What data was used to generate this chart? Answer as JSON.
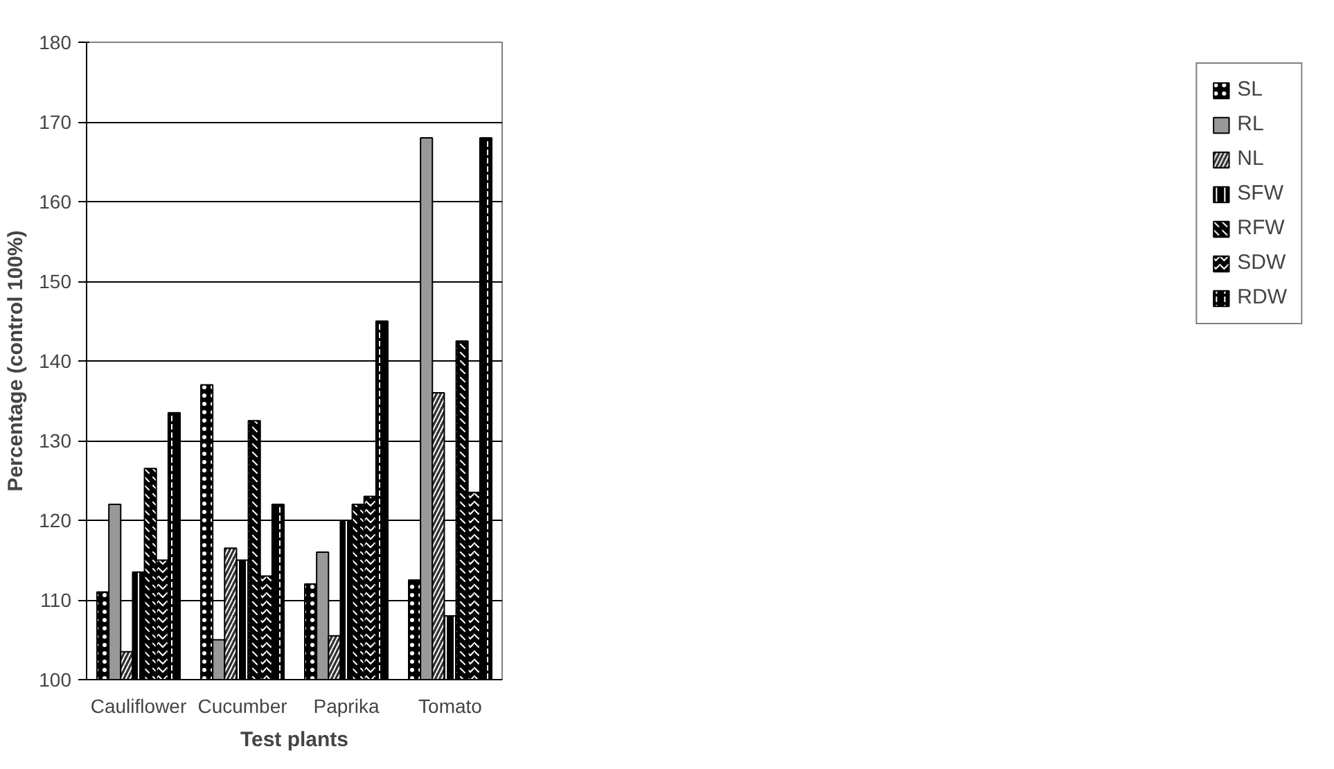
{
  "chart_data": {
    "type": "bar",
    "xlabel": "Test plants",
    "ylabel": "Percentage (control 100%)",
    "categories": [
      "Cauliflower",
      "Cucumber",
      "Paprika",
      "Tomato"
    ],
    "series": [
      {
        "name": "SL",
        "color": "#000000",
        "values": [
          111,
          137,
          112,
          112.5
        ]
      },
      {
        "name": "RL",
        "color": "#999999",
        "values": [
          122,
          105,
          116,
          168
        ]
      },
      {
        "name": "NL",
        "color": "#333333",
        "values": [
          103.5,
          116.5,
          105.5,
          136
        ]
      },
      {
        "name": "SFW",
        "color": "#000000",
        "values": [
          113.5,
          115,
          120,
          108
        ]
      },
      {
        "name": "RFW",
        "color": "#000000",
        "values": [
          126.5,
          132.5,
          122,
          142.5
        ]
      },
      {
        "name": "SDW",
        "color": "#000000",
        "values": [
          115,
          113,
          123,
          123.5
        ]
      },
      {
        "name": "RDW",
        "color": "#000000",
        "values": [
          133.5,
          122,
          145,
          168
        ]
      }
    ],
    "ylim": [
      100,
      180
    ],
    "yticks": [
      100,
      110,
      120,
      130,
      140,
      150,
      160,
      170,
      180
    ],
    "grid": "y",
    "legend": "right"
  }
}
